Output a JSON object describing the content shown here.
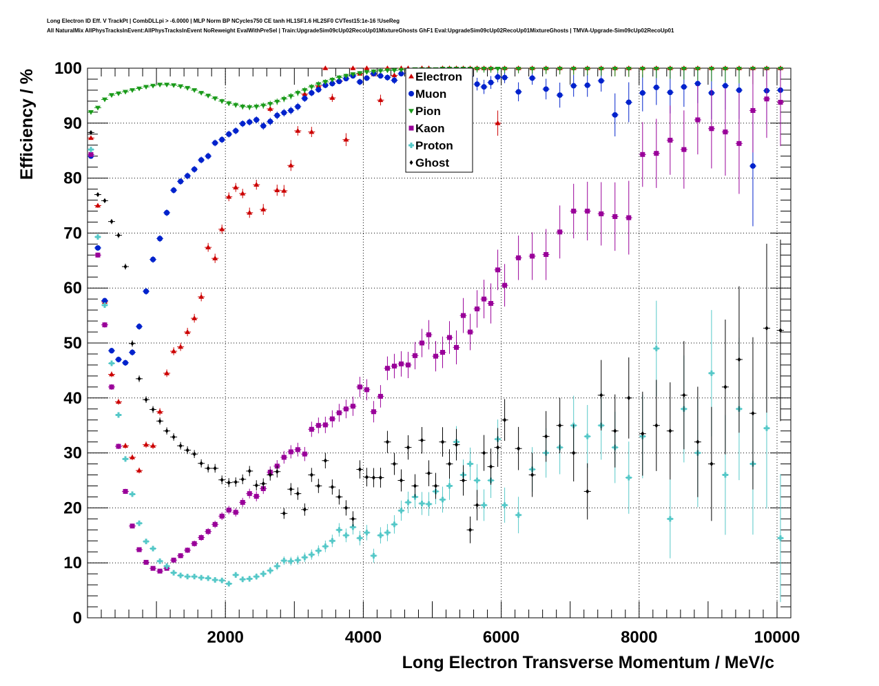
{
  "header": {
    "title_line1": "Long Electron ID Eff. V TrackPt | CombDLLpi > -6.0000 | MLP Norm BP NCycles750 CE tanh HL1SF1.6 HL2SF0 CVTest15:1e-16 !UseReg",
    "title_line2": "All NaturalMix AllPhysTracksInEvent:AllPhysTracksInEvent NoReweight EvalWithPreSel | Train:UpgradeSim09cUp02RecoUp01MixtureGhosts GhF1 Eval:UpgradeSim09cUp02RecoUp01MixtureGhosts | TMVA-Upgrade-Sim09cUp02RecoUp01"
  },
  "chart_data": {
    "type": "scatter",
    "xlabel": "Long Electron Transverse Momentum / MeV/c",
    "ylabel": "Efficiency / %",
    "xlim": [
      0,
      10200
    ],
    "ylim": [
      0,
      100
    ],
    "x_ticks": [
      2000,
      4000,
      6000,
      8000,
      10000
    ],
    "y_ticks": [
      0,
      10,
      20,
      30,
      40,
      50,
      60,
      70,
      80,
      90,
      100
    ],
    "grid": true,
    "legend_position": "top-center",
    "series": [
      {
        "name": "Electron",
        "color": "#cc0000",
        "marker": "triangle-up",
        "x": [
          50,
          150,
          250,
          350,
          450,
          550,
          650,
          750,
          850,
          950,
          1050,
          1150,
          1250,
          1350,
          1450,
          1550,
          1650,
          1750,
          1850,
          1950,
          2050,
          2150,
          2250,
          2350,
          2450,
          2550,
          2650,
          2750,
          2850,
          2950,
          3050,
          3150,
          3250,
          3350,
          3450,
          3550,
          3650,
          3750,
          3850,
          3950,
          4050,
          4150,
          4250,
          4350,
          4450,
          4550,
          4650,
          4750,
          4850,
          4950,
          5050,
          5150,
          5250,
          5350,
          5450,
          5550,
          5650,
          5750,
          5850,
          5950,
          6050,
          6250,
          6450,
          6650,
          6850,
          7050,
          7250,
          7450,
          7650,
          7850,
          8050,
          8250,
          8450,
          8650,
          8850,
          9050,
          9250,
          9450,
          9650,
          9850,
          10050
        ],
        "y": [
          87.3,
          75.0,
          57.5,
          44.3,
          39.3,
          31.3,
          29.2,
          26.8,
          31.5,
          31.3,
          37.5,
          44.5,
          48.5,
          49.3,
          52.0,
          54.5,
          58.4,
          67.4,
          65.4,
          70.7,
          76.6,
          78.3,
          77.2,
          73.7,
          78.8,
          74.3,
          92.6,
          77.8,
          77.7,
          82.3,
          88.6,
          95.3,
          88.4,
          96.8,
          100.0,
          94.6,
          97.7,
          87.0,
          100.0,
          99.0,
          100.0,
          98.9,
          94.2,
          100.0,
          98.7,
          100.0,
          100.0,
          99.0,
          100.0,
          100.0,
          99.4,
          100.0,
          100.0,
          100.0,
          100.0,
          100.0,
          100.0,
          100.0,
          100.0,
          90.0,
          100.0,
          100.0,
          100.0,
          100.0,
          100.0,
          100.0,
          100.0,
          100.0,
          100.0,
          100.0,
          100.0,
          100.0,
          100.0,
          100.0,
          100.0,
          100.0,
          100.0,
          100.0,
          100.0,
          100.0,
          100.0
        ]
      },
      {
        "name": "Muon",
        "color": "#0022cc",
        "marker": "circle",
        "x": [
          50,
          150,
          250,
          350,
          450,
          550,
          650,
          750,
          850,
          950,
          1050,
          1150,
          1250,
          1350,
          1450,
          1550,
          1650,
          1750,
          1850,
          1950,
          2050,
          2150,
          2250,
          2350,
          2450,
          2550,
          2650,
          2750,
          2850,
          2950,
          3050,
          3150,
          3250,
          3350,
          3450,
          3550,
          3650,
          3750,
          3850,
          3950,
          4050,
          4150,
          4250,
          4350,
          4450,
          4550,
          4650,
          4750,
          4850,
          4950,
          5050,
          5150,
          5250,
          5350,
          5450,
          5550,
          5650,
          5750,
          5850,
          5950,
          6050,
          6250,
          6450,
          6650,
          6850,
          7050,
          7250,
          7450,
          7650,
          7850,
          8050,
          8250,
          8450,
          8650,
          8850,
          9050,
          9250,
          9450,
          9650,
          9850,
          10050
        ],
        "y": [
          84.0,
          67.3,
          57.7,
          48.6,
          47.0,
          46.4,
          48.3,
          53.0,
          59.4,
          65.2,
          69.0,
          73.7,
          77.8,
          79.4,
          80.4,
          81.6,
          83.3,
          84.0,
          86.4,
          87.0,
          88.0,
          88.6,
          89.9,
          90.2,
          90.6,
          89.5,
          90.3,
          91.4,
          91.9,
          92.3,
          93.0,
          94.5,
          95.5,
          96.1,
          96.9,
          97.2,
          97.6,
          98.1,
          98.6,
          97.5,
          98.2,
          99.0,
          98.6,
          98.3,
          97.8,
          99.0,
          99.1,
          99.0,
          99.3,
          99.2,
          99.1,
          99.4,
          99.3,
          99.6,
          99.1,
          98.5,
          97.1,
          96.6,
          97.4,
          98.4,
          98.3,
          95.7,
          98.2,
          96.2,
          95.1,
          96.8,
          96.9,
          97.7,
          91.5,
          93.8,
          95.5,
          96.5,
          95.6,
          96.6,
          97.2,
          95.5,
          96.8,
          96.0,
          82.2,
          95.9,
          96.0
        ]
      },
      {
        "name": "Pion",
        "color": "#1a9a1a",
        "marker": "triangle-down",
        "x": [
          50,
          150,
          250,
          350,
          450,
          550,
          650,
          750,
          850,
          950,
          1050,
          1150,
          1250,
          1350,
          1450,
          1550,
          1650,
          1750,
          1850,
          1950,
          2050,
          2150,
          2250,
          2350,
          2450,
          2550,
          2650,
          2750,
          2850,
          2950,
          3050,
          3150,
          3250,
          3350,
          3450,
          3550,
          3650,
          3750,
          3850,
          3950,
          4050,
          4150,
          4250,
          4350,
          4450,
          4550,
          4650,
          4750,
          4850,
          4950,
          5050,
          5150,
          5250,
          5350,
          5450,
          5550,
          5650,
          5750,
          5850,
          5950,
          6050,
          6250,
          6450,
          6650,
          6850,
          7050,
          7250,
          7450,
          7650,
          7850,
          8050,
          8250,
          8450,
          8650,
          8850,
          9050,
          9250,
          9450,
          9650,
          9850,
          10050
        ],
        "y": [
          92.0,
          92.8,
          94.3,
          95.1,
          95.4,
          95.7,
          96.0,
          96.3,
          96.6,
          96.8,
          97.0,
          97.0,
          96.9,
          96.7,
          96.4,
          96.0,
          95.5,
          95.0,
          94.5,
          94.0,
          93.6,
          93.3,
          93.0,
          92.9,
          93.0,
          93.2,
          93.5,
          93.9,
          94.4,
          94.9,
          95.5,
          96.0,
          96.6,
          97.1,
          97.5,
          97.9,
          98.3,
          98.6,
          98.9,
          99.1,
          99.3,
          99.4,
          99.5,
          99.6,
          99.6,
          99.7,
          99.7,
          99.8,
          99.8,
          99.8,
          99.8,
          99.9,
          99.9,
          99.9,
          99.9,
          99.9,
          99.9,
          99.9,
          99.9,
          99.9,
          99.9,
          99.9,
          99.9,
          99.9,
          99.9,
          99.9,
          99.9,
          99.9,
          99.9,
          99.9,
          99.9,
          99.9,
          99.9,
          99.9,
          99.9,
          99.9,
          99.9,
          99.9,
          99.9,
          99.9,
          99.9
        ]
      },
      {
        "name": "Kaon",
        "color": "#990099",
        "marker": "square",
        "x": [
          50,
          150,
          250,
          350,
          450,
          550,
          650,
          750,
          850,
          950,
          1050,
          1150,
          1250,
          1350,
          1450,
          1550,
          1650,
          1750,
          1850,
          1950,
          2050,
          2150,
          2250,
          2350,
          2450,
          2550,
          2650,
          2750,
          2850,
          2950,
          3050,
          3150,
          3250,
          3350,
          3450,
          3550,
          3650,
          3750,
          3850,
          3950,
          4050,
          4150,
          4250,
          4350,
          4450,
          4550,
          4650,
          4750,
          4850,
          4950,
          5050,
          5150,
          5250,
          5350,
          5450,
          5550,
          5650,
          5750,
          5850,
          5950,
          6050,
          6250,
          6450,
          6650,
          6850,
          7050,
          7250,
          7450,
          7650,
          7850,
          8050,
          8250,
          8450,
          8650,
          8850,
          9050,
          9250,
          9450,
          9650,
          9850,
          10050
        ],
        "y": [
          84.3,
          66.0,
          53.3,
          42.0,
          31.2,
          23.0,
          16.7,
          12.4,
          10.1,
          9.0,
          8.5,
          9.0,
          10.5,
          11.3,
          12.3,
          13.5,
          14.6,
          15.7,
          17.0,
          18.5,
          19.6,
          19.2,
          21.0,
          22.6,
          22.1,
          23.5,
          26.5,
          27.6,
          29.2,
          30.2,
          30.6,
          29.8,
          34.3,
          35.0,
          35.1,
          36.2,
          37.3,
          38.0,
          38.5,
          42.0,
          41.5,
          37.5,
          40.3,
          45.4,
          45.8,
          46.2,
          46.0,
          47.7,
          50.0,
          51.5,
          47.6,
          48.3,
          51.0,
          49.2,
          55.0,
          52.0,
          56.2,
          58.0,
          57.2,
          63.3,
          60.5,
          65.5,
          65.8,
          66.1,
          70.2,
          74.0,
          74.0,
          73.5,
          73.0,
          72.8,
          84.3,
          84.5,
          86.9,
          85.2,
          90.6,
          89.0,
          88.4,
          86.3,
          92.3,
          94.4,
          93.8
        ]
      },
      {
        "name": "Proton",
        "color": "#55c8c8",
        "marker": "cross",
        "x": [
          50,
          150,
          250,
          350,
          450,
          550,
          650,
          750,
          850,
          950,
          1050,
          1150,
          1250,
          1350,
          1450,
          1550,
          1650,
          1750,
          1850,
          1950,
          2050,
          2150,
          2250,
          2350,
          2450,
          2550,
          2650,
          2750,
          2850,
          2950,
          3050,
          3150,
          3250,
          3350,
          3450,
          3550,
          3650,
          3750,
          3850,
          3950,
          4050,
          4150,
          4250,
          4350,
          4450,
          4550,
          4650,
          4750,
          4850,
          4950,
          5050,
          5150,
          5250,
          5350,
          5450,
          5550,
          5650,
          5750,
          5850,
          5950,
          6050,
          6250,
          6450,
          6650,
          6850,
          7050,
          7250,
          7450,
          7650,
          7850,
          8050,
          8250,
          8450,
          8650,
          8850,
          9050,
          9250,
          9450,
          9650,
          9850,
          10050
        ],
        "y": [
          85.2,
          69.3,
          56.9,
          46.3,
          36.9,
          28.9,
          22.5,
          17.2,
          13.9,
          12.6,
          10.3,
          9.4,
          8.2,
          7.7,
          7.5,
          7.5,
          7.3,
          7.2,
          6.9,
          6.8,
          6.2,
          7.8,
          7.0,
          7.1,
          7.5,
          8.0,
          8.6,
          9.4,
          10.4,
          10.3,
          10.5,
          11.0,
          11.5,
          12.2,
          13.0,
          14.0,
          16.0,
          15.0,
          16.5,
          14.5,
          15.5,
          11.3,
          15.0,
          15.5,
          17.0,
          19.5,
          21.0,
          22.0,
          20.8,
          20.7,
          23.0,
          21.5,
          24.0,
          32.0,
          26.0,
          28.0,
          25.0,
          20.5,
          25.0,
          32.5,
          20.5,
          18.7,
          27.0,
          30.0,
          31.0,
          35.0,
          33.0,
          35.0,
          31.0,
          25.5,
          33.0,
          49.0,
          18.0,
          38.0,
          30.0,
          44.5,
          26.0,
          38.0,
          28.0,
          34.5,
          14.5
        ]
      },
      {
        "name": "Ghost",
        "color": "#000000",
        "marker": "diamond",
        "x": [
          50,
          150,
          250,
          350,
          450,
          550,
          650,
          750,
          850,
          950,
          1050,
          1150,
          1250,
          1350,
          1450,
          1550,
          1650,
          1750,
          1850,
          1950,
          2050,
          2150,
          2250,
          2350,
          2450,
          2550,
          2650,
          2750,
          2850,
          2950,
          3050,
          3150,
          3250,
          3350,
          3450,
          3550,
          3650,
          3750,
          3850,
          3950,
          4050,
          4150,
          4250,
          4350,
          4450,
          4550,
          4650,
          4750,
          4850,
          4950,
          5050,
          5150,
          5250,
          5350,
          5450,
          5550,
          5650,
          5750,
          5850,
          5950,
          6050,
          6250,
          6450,
          6650,
          6850,
          7050,
          7250,
          7450,
          7650,
          7850,
          8050,
          8250,
          8450,
          8650,
          8850,
          9050,
          9250,
          9450,
          9650,
          9850,
          10050
        ],
        "y": [
          88.3,
          77.0,
          75.9,
          72.1,
          69.6,
          63.9,
          49.9,
          43.5,
          39.7,
          37.9,
          35.8,
          34.0,
          32.9,
          31.3,
          30.5,
          29.8,
          28.1,
          27.2,
          27.2,
          25.1,
          24.6,
          24.7,
          25.2,
          26.7,
          24.1,
          24.4,
          26.0,
          26.6,
          19.0,
          23.4,
          22.6,
          19.7,
          26.0,
          24.0,
          28.6,
          23.8,
          22.0,
          20.0,
          18.0,
          27.0,
          25.6,
          25.5,
          25.5,
          32.0,
          28.0,
          25.0,
          31.0,
          24.0,
          32.3,
          26.3,
          24.0,
          32.0,
          28.0,
          31.5,
          25.0,
          16.0,
          20.5,
          30.0,
          27.5,
          31.0,
          36.0,
          30.8,
          26.0,
          33.0,
          35.0,
          30.0,
          23.0,
          40.5,
          34.0,
          40.0,
          33.5,
          35.0,
          34.0,
          40.5,
          32.0,
          28.0,
          42.0,
          47.0,
          37.2,
          52.7,
          52.3
        ]
      }
    ]
  }
}
